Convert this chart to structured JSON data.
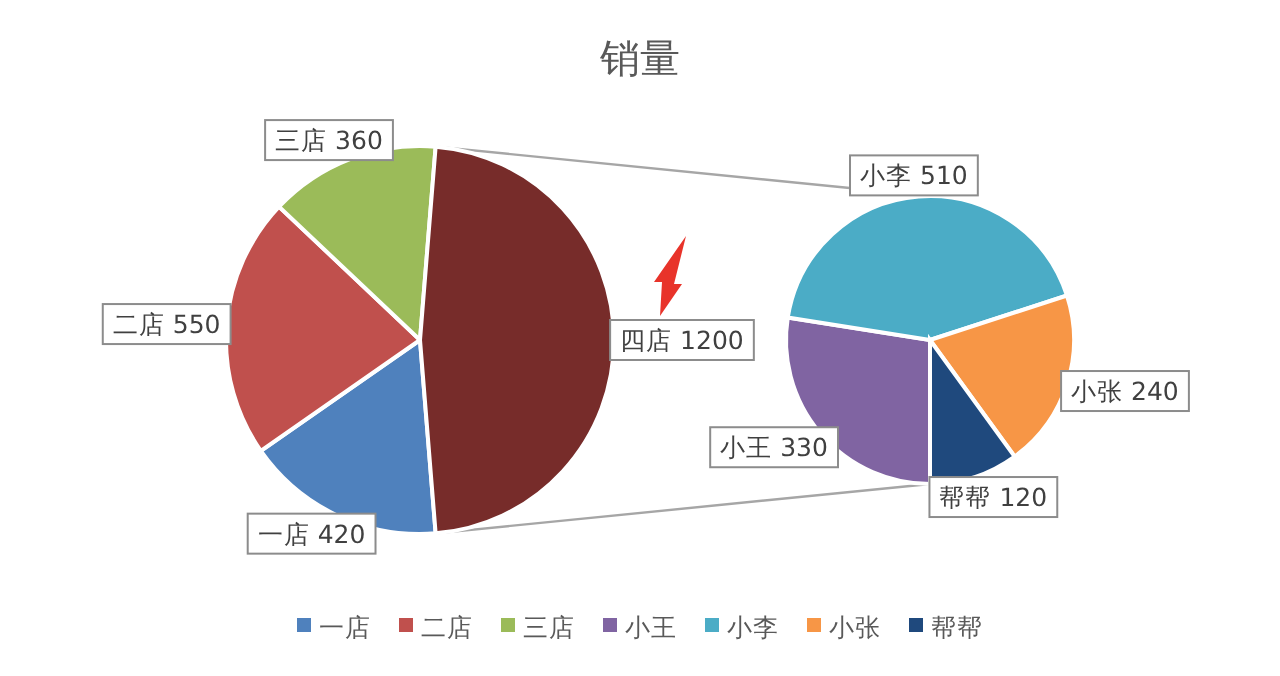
{
  "chart_data": [
    {
      "type": "pie",
      "title": "销量",
      "categories": [
        "一店",
        "二店",
        "三店",
        "四店"
      ],
      "values": [
        420,
        550,
        360,
        1200
      ],
      "colors": [
        "#4f81bd",
        "#c0504d",
        "#9bbb59",
        "#772c2a"
      ],
      "data_labels": true,
      "legend": "bottom"
    },
    {
      "type": "pie",
      "categories": [
        "小王",
        "小李",
        "小张",
        "帮帮"
      ],
      "values": [
        330,
        510,
        240,
        120
      ],
      "colors": [
        "#8064a2",
        "#4bacc6",
        "#f79646",
        "#1f497d"
      ],
      "data_labels": true,
      "legend": "bottom"
    }
  ]
}
